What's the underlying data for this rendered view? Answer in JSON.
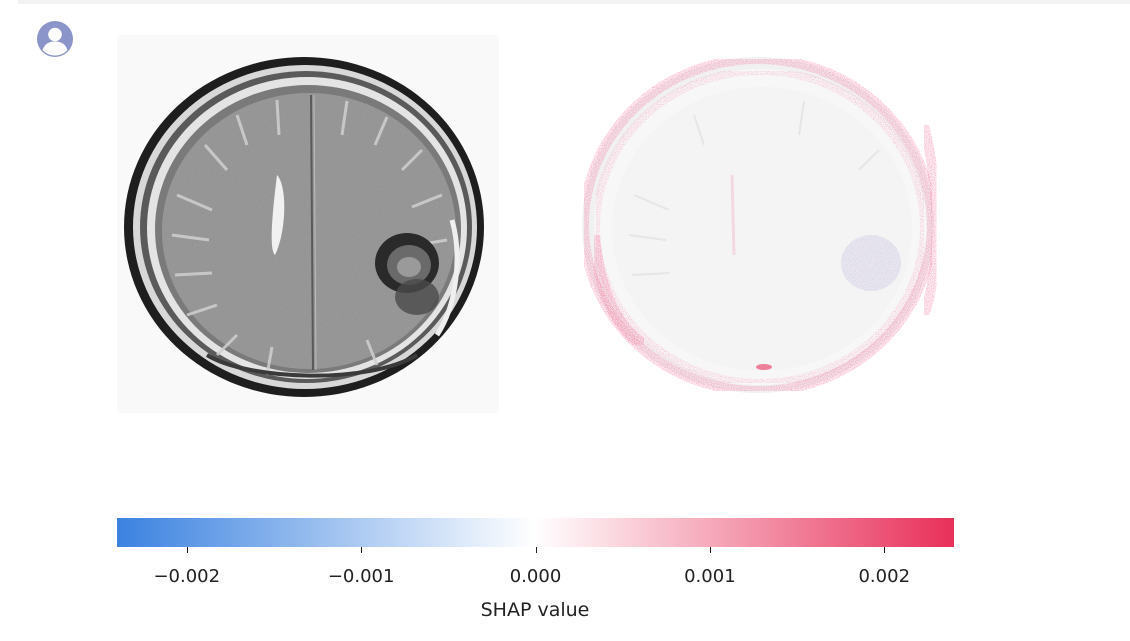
{
  "colorbar": {
    "label": "SHAP value",
    "min": -0.0024,
    "max": 0.0024,
    "negative_color": "#3b82e0",
    "zero_color": "#ffffff",
    "positive_color": "#e8305a",
    "ticks": [
      {
        "value": -0.002,
        "label": "−0.002"
      },
      {
        "value": -0.001,
        "label": "−0.001"
      },
      {
        "value": 0,
        "label": "0.000"
      },
      {
        "value": 0.001,
        "label": "0.001"
      },
      {
        "value": 0.002,
        "label": "0.002"
      }
    ]
  },
  "colors": {
    "avatar": "#8b95c9",
    "shap_positive": "#e8305a",
    "shap_negative": "#5b8fd6"
  },
  "icons": {
    "avatar": "user-circle-icon"
  }
}
